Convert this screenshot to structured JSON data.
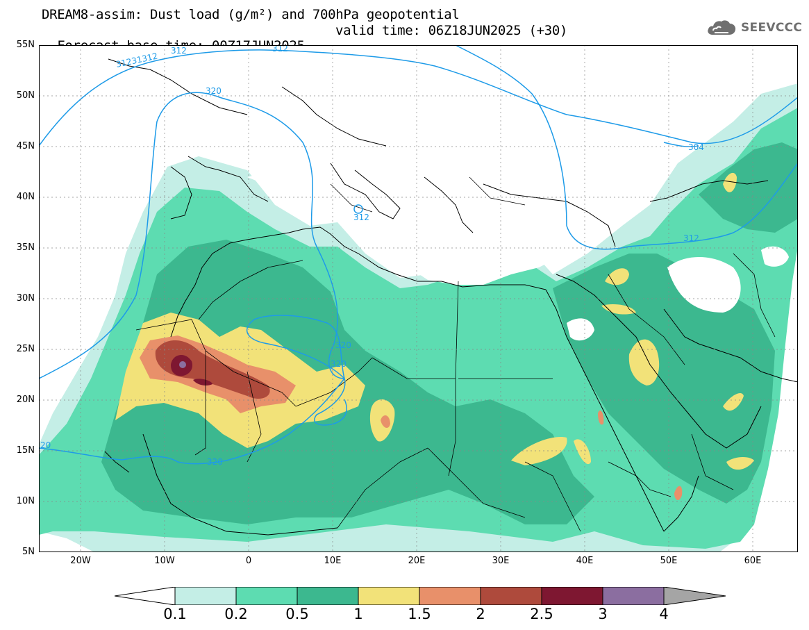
{
  "title": {
    "line1": "DREAM8-assim: Dust load (g/m²) and 700hPa geopotential",
    "base_time": "Forecast base time: 00Z17JUN2025",
    "valid_time": "valid time: 06Z18JUN2025 (+30)"
  },
  "logo": {
    "text": "SEEVCCC",
    "icon": "cloud-icon"
  },
  "lat_labels": [
    "55N",
    "50N",
    "45N",
    "40N",
    "35N",
    "30N",
    "25N",
    "20N",
    "15N",
    "10N",
    "5N"
  ],
  "lon_labels": [
    "20W",
    "10W",
    "0",
    "10E",
    "20E",
    "30E",
    "40E",
    "50E",
    "60E"
  ],
  "contour_labels": {
    "c312_nw": "31231312",
    "c312_a": "312",
    "c312_b": "312",
    "c312_c": "312",
    "c312_e": "312",
    "c304": "304",
    "c320_n": "320",
    "c320_a": "320",
    "c320_b": "320",
    "c320_c": "320",
    "c320_w": "20"
  },
  "colorbar": {
    "levels": [
      "0.1",
      "0.2",
      "0.5",
      "1",
      "1.5",
      "2",
      "2.5",
      "3",
      "4"
    ],
    "colors": {
      "under": "#ffffff",
      "bin1": "#c4eee6",
      "bin2": "#5ddcb1",
      "bin3": "#3cb88f",
      "bin4": "#f2e279",
      "bin5": "#e8906a",
      "bin6": "#ae4a3c",
      "bin7": "#7e1731",
      "bin8": "#8b6ea0",
      "over": "#a5a5a5"
    }
  },
  "contour_color": "#1e9be8"
}
